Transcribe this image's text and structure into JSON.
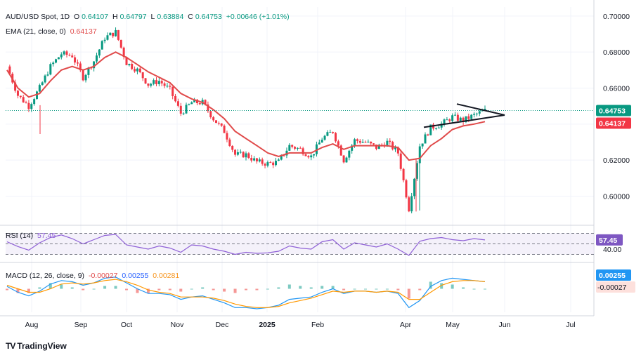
{
  "legend": {
    "symbol": "AUD/USD Spot, 1D",
    "open_label": "O",
    "open": "0.64107",
    "high_label": "H",
    "high": "0.64797",
    "low_label": "L",
    "low": "0.63884",
    "close_label": "C",
    "close": "0.64753",
    "change": "+0.00646 (+1.01%)",
    "ema_label": "EMA (21, close, 0)",
    "ema_value": "0.64137",
    "rsi_label": "RSI (14)",
    "rsi_value": "57.45",
    "macd_label": "MACD (12, 26, close, 9)",
    "macd_hist": "-0.00027",
    "macd_line": "0.00255",
    "macd_signal": "0.00281"
  },
  "brand": {
    "logo": "TV",
    "name": "TradingView"
  },
  "colors": {
    "up": "#089981",
    "down": "#f23645",
    "ema": "#e04a4a",
    "rsi": "#8e5fd6",
    "macd": "#2196f3",
    "signal": "#ff9800",
    "price_tag": "#089981",
    "ema_tag": "#f23645",
    "rsi_tag": "#7e57c2",
    "macd_tag": "#2196f3"
  },
  "chart_data": {
    "type": "candlestick",
    "price_axis": {
      "ticks": [
        "0.70000",
        "0.68000",
        "0.66000",
        "0.64000",
        "0.62000",
        "0.60000"
      ],
      "range": [
        0.585,
        0.705
      ],
      "last_price_tag": "0.64753",
      "ema_tag": "0.64137"
    },
    "x_axis": {
      "ticks": [
        "Aug",
        "Sep",
        "Oct",
        "Nov",
        "Dec",
        "2025",
        "Feb",
        "Apr",
        "May",
        "Jun",
        "Jul"
      ]
    },
    "price_series": [
      {
        "t": "Jul 19",
        "c": 0.672
      },
      {
        "t": "Jul 26",
        "c": 0.656
      },
      {
        "t": "Aug 5",
        "c": 0.65
      },
      {
        "t": "Aug 12",
        "c": 0.66
      },
      {
        "t": "Aug 19",
        "c": 0.672
      },
      {
        "t": "Aug 26",
        "c": 0.679
      },
      {
        "t": "Sep 4",
        "c": 0.678
      },
      {
        "t": "Sep 11",
        "c": 0.666
      },
      {
        "t": "Sep 18",
        "c": 0.675
      },
      {
        "t": "Sep 25",
        "c": 0.688
      },
      {
        "t": "Oct 1",
        "c": 0.691
      },
      {
        "t": "Oct 8",
        "c": 0.674
      },
      {
        "t": "Oct 16",
        "c": 0.67
      },
      {
        "t": "Oct 23",
        "c": 0.662
      },
      {
        "t": "Oct 31",
        "c": 0.664
      },
      {
        "t": "Nov 7",
        "c": 0.659
      },
      {
        "t": "Nov 14",
        "c": 0.646
      },
      {
        "t": "Nov 22",
        "c": 0.652
      },
      {
        "t": "Nov 29",
        "c": 0.652
      },
      {
        "t": "Dec 6",
        "c": 0.643
      },
      {
        "t": "Dec 13",
        "c": 0.636
      },
      {
        "t": "Dec 20",
        "c": 0.623
      },
      {
        "t": "Dec 27",
        "c": 0.623
      },
      {
        "t": "Jan 3",
        "c": 0.619
      },
      {
        "t": "Jan 10",
        "c": 0.618
      },
      {
        "t": "Jan 17",
        "c": 0.619
      },
      {
        "t": "Jan 24",
        "c": 0.628
      },
      {
        "t": "Jan 31",
        "c": 0.626
      },
      {
        "t": "Feb 7",
        "c": 0.622
      },
      {
        "t": "Feb 14",
        "c": 0.632
      },
      {
        "t": "Feb 21",
        "c": 0.636
      },
      {
        "t": "Feb 28",
        "c": 0.62
      },
      {
        "t": "Mar 7",
        "c": 0.631
      },
      {
        "t": "Mar 14",
        "c": 0.63
      },
      {
        "t": "Mar 21",
        "c": 0.627
      },
      {
        "t": "Mar 28",
        "c": 0.63
      },
      {
        "t": "Apr 4",
        "c": 0.624
      },
      {
        "t": "Apr 8",
        "c": 0.593
      },
      {
        "t": "Apr 11",
        "c": 0.628
      },
      {
        "t": "Apr 18",
        "c": 0.638
      },
      {
        "t": "Apr 25",
        "c": 0.64
      },
      {
        "t": "May 2",
        "c": 0.644
      },
      {
        "t": "May 9",
        "c": 0.642
      },
      {
        "t": "May 16",
        "c": 0.645
      },
      {
        "t": "May 23",
        "c": 0.6475
      }
    ],
    "ema_series": [
      0.67,
      0.66,
      0.655,
      0.657,
      0.664,
      0.67,
      0.672,
      0.67,
      0.672,
      0.677,
      0.68,
      0.677,
      0.673,
      0.669,
      0.666,
      0.663,
      0.657,
      0.654,
      0.652,
      0.648,
      0.643,
      0.636,
      0.632,
      0.628,
      0.624,
      0.622,
      0.624,
      0.624,
      0.624,
      0.627,
      0.629,
      0.626,
      0.628,
      0.628,
      0.628,
      0.628,
      0.627,
      0.62,
      0.621,
      0.628,
      0.632,
      0.637,
      0.639,
      0.64,
      0.64137
    ],
    "triangle": {
      "upper": [
        [
          "May 1",
          0.65
        ],
        [
          "May 28",
          0.645
        ]
      ],
      "lower": [
        [
          "Apr 17",
          0.639
        ],
        [
          "May 28",
          0.645
        ]
      ]
    },
    "rsi": {
      "label": "RSI (14)",
      "levels_shown": [
        "40.00"
      ],
      "value_tag": "57.45",
      "series": [
        54,
        45,
        38,
        52,
        62,
        67,
        60,
        50,
        58,
        66,
        68,
        48,
        44,
        40,
        46,
        42,
        34,
        48,
        46,
        40,
        36,
        30,
        34,
        32,
        33,
        36,
        46,
        42,
        40,
        54,
        58,
        40,
        52,
        48,
        44,
        50,
        40,
        28,
        55,
        60,
        62,
        58,
        56,
        60,
        57.45
      ]
    },
    "macd": {
      "label": "MACD (12, 26, close, 9)",
      "hist_tag": "-0.00027",
      "line_tag": "0.00255",
      "series_macd": [
        0.2,
        -0.3,
        -0.6,
        -0.2,
        0.4,
        0.7,
        0.6,
        0.3,
        0.5,
        0.9,
        1.0,
        0.5,
        0.0,
        -0.4,
        -0.4,
        -0.5,
        -0.9,
        -0.7,
        -0.6,
        -0.9,
        -1.2,
        -1.6,
        -1.6,
        -1.7,
        -1.6,
        -1.4,
        -0.9,
        -0.8,
        -0.7,
        -0.3,
        0.0,
        -0.4,
        -0.2,
        -0.2,
        -0.3,
        -0.2,
        -0.4,
        -1.6,
        -1.0,
        0.2,
        0.7,
        0.9,
        0.8,
        0.7,
        0.6
      ],
      "series_signal": [
        0.3,
        0.0,
        -0.3,
        -0.3,
        0.0,
        0.4,
        0.5,
        0.4,
        0.5,
        0.7,
        0.8,
        0.6,
        0.3,
        -0.1,
        -0.3,
        -0.4,
        -0.7,
        -0.7,
        -0.7,
        -0.8,
        -1.0,
        -1.3,
        -1.5,
        -1.6,
        -1.6,
        -1.5,
        -1.2,
        -1.0,
        -0.8,
        -0.5,
        -0.2,
        -0.3,
        -0.2,
        -0.2,
        -0.3,
        -0.2,
        -0.3,
        -0.9,
        -0.9,
        -0.3,
        0.3,
        0.6,
        0.7,
        0.7,
        0.6
      ]
    }
  }
}
